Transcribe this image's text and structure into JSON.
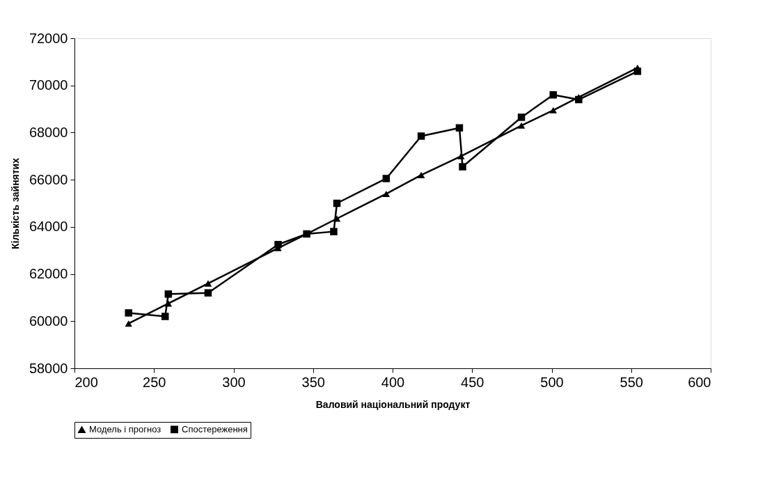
{
  "chart_data": {
    "type": "line",
    "xlabel": "Валовий національний продукт",
    "ylabel": "Кількість зайнятих",
    "xlim": [
      200,
      600
    ],
    "xticks": [
      200,
      250,
      300,
      350,
      400,
      450,
      500,
      550,
      600
    ],
    "ylim": [
      58000,
      72000
    ],
    "yticks": [
      58000,
      60000,
      62000,
      64000,
      66000,
      68000,
      70000,
      72000
    ],
    "grid": false,
    "legend": "bottom",
    "line_style": "solid",
    "series": [
      {
        "name": "Модель і прогноз",
        "color": "#000000",
        "marker": "triangle",
        "x": [
          234,
          259,
          284,
          328,
          346,
          365,
          396,
          418,
          443,
          481,
          501,
          517,
          554
        ],
        "values": [
          59900,
          60750,
          61600,
          63100,
          63700,
          64350,
          65400,
          66200,
          67000,
          68300,
          68950,
          69500,
          70750
        ]
      },
      {
        "name": "Спостереження",
        "color": "#000000",
        "marker": "square",
        "x": [
          234,
          257,
          259,
          284,
          328,
          346,
          363,
          365,
          396,
          418,
          442,
          444,
          481,
          501,
          517,
          554
        ],
        "values": [
          60350,
          60200,
          61150,
          61200,
          63250,
          63700,
          63800,
          65000,
          66050,
          67850,
          68200,
          66550,
          68650,
          69600,
          69400,
          70600
        ]
      }
    ]
  }
}
